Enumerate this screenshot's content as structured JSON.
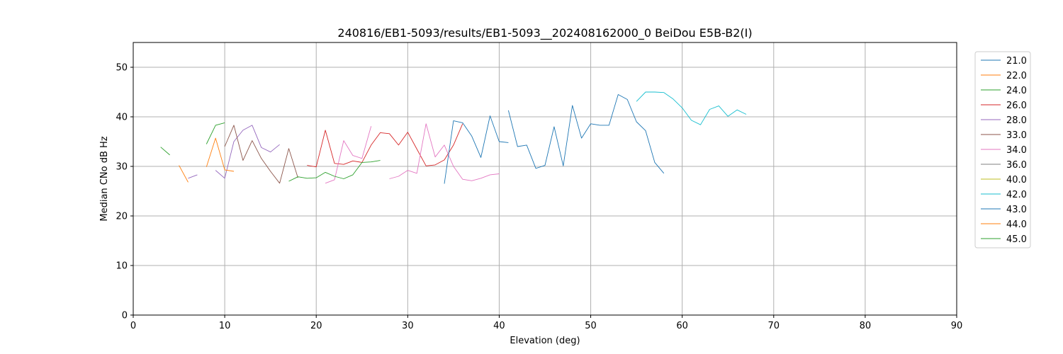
{
  "chart_data": {
    "type": "line",
    "title": "240816/EB1-5093/results/EB1-5093__202408162000_0 BeiDou E5B-B2(I)",
    "xlabel": "Elevation (deg)",
    "ylabel": "Median CNo dB Hz",
    "xlim": [
      0,
      90
    ],
    "ylim": [
      0,
      55
    ],
    "xticks": [
      0,
      10,
      20,
      30,
      40,
      50,
      60,
      70,
      80,
      90
    ],
    "yticks": [
      0,
      10,
      20,
      30,
      40,
      50
    ],
    "grid": true,
    "legend_position": "right-outside",
    "series": [
      {
        "name": "21.0",
        "color": "#1f77b4",
        "x": [
          41,
          42,
          43,
          44,
          45,
          46,
          47,
          48,
          49,
          50,
          51,
          52,
          53,
          54,
          55,
          56,
          57,
          58
        ],
        "y": [
          41.3,
          34.0,
          34.3,
          29.6,
          30.2,
          38.0,
          30.1,
          42.3,
          35.7,
          38.6,
          38.3,
          38.3,
          44.5,
          43.5,
          39.0,
          37.2,
          30.8,
          28.6
        ]
      },
      {
        "name": "22.0",
        "color": "#ff7f0e",
        "x": [
          5,
          6
        ],
        "y": [
          30.2,
          26.8
        ]
      },
      {
        "name": "24.0",
        "color": "#2ca02c",
        "x": [
          3,
          4
        ],
        "y": [
          33.9,
          32.3
        ]
      },
      {
        "name": "26.0",
        "color": "#d62728",
        "x": [
          19,
          20,
          21,
          22,
          23,
          24,
          25,
          26,
          27,
          28,
          29,
          30,
          31,
          32,
          33,
          34,
          35,
          36
        ],
        "y": [
          30.2,
          29.9,
          37.3,
          30.6,
          30.4,
          31.1,
          30.8,
          34.3,
          36.8,
          36.6,
          34.3,
          36.9,
          33.5,
          30.1,
          30.3,
          31.3,
          34.3,
          38.6
        ]
      },
      {
        "name": "28.0",
        "color": "#9467bd",
        "x": [
          6,
          7,
          8,
          9,
          10,
          11,
          12,
          13,
          14,
          15,
          16
        ],
        "y": [
          27.6,
          28.3,
          null,
          29.2,
          27.6,
          35.0,
          37.3,
          38.3,
          33.8,
          32.9,
          34.4
        ]
      },
      {
        "name": "33.0",
        "color": "#8c564b",
        "x": [
          10,
          11,
          12,
          13,
          14,
          15,
          16,
          17,
          18
        ],
        "y": [
          34.0,
          38.3,
          31.2,
          35.2,
          31.6,
          29.0,
          26.6,
          33.6,
          27.7
        ]
      },
      {
        "name": "34.0",
        "color": "#e377c2",
        "x": [
          21,
          22,
          23,
          24,
          25,
          26,
          null,
          28,
          29,
          30,
          31,
          32,
          33,
          34,
          35,
          36,
          37,
          38,
          39,
          40
        ],
        "y": [
          26.6,
          27.3,
          35.2,
          32.2,
          31.6,
          38.1,
          null,
          27.5,
          28.0,
          29.2,
          28.6,
          38.6,
          31.9,
          34.3,
          30.0,
          27.4,
          27.1,
          27.6,
          28.3,
          28.5
        ]
      },
      {
        "name": "36.0",
        "color": "#7f7f7f",
        "x": [],
        "y": []
      },
      {
        "name": "40.0",
        "color": "#bcbd22",
        "x": [],
        "y": []
      },
      {
        "name": "42.0",
        "color": "#17becf",
        "x": [
          55,
          56,
          57,
          58,
          59,
          60,
          61,
          62,
          63,
          64,
          65,
          66,
          67
        ],
        "y": [
          43.1,
          45.0,
          45.0,
          44.9,
          43.6,
          41.8,
          39.3,
          38.4,
          41.5,
          42.2,
          40.1,
          41.4,
          40.5
        ]
      },
      {
        "name": "43.0",
        "color": "#1f77b4",
        "x": [
          34,
          35,
          36,
          37,
          38,
          39,
          40,
          41
        ],
        "y": [
          26.5,
          39.2,
          38.8,
          36.1,
          31.8,
          40.2,
          35.0,
          34.8
        ]
      },
      {
        "name": "44.0",
        "color": "#ff7f0e",
        "x": [
          8,
          9,
          10,
          11
        ],
        "y": [
          29.9,
          35.7,
          29.3,
          29.0
        ]
      },
      {
        "name": "45.0",
        "color": "#2ca02c",
        "x": [
          8,
          9,
          10,
          null,
          17,
          18,
          19,
          20,
          21,
          22,
          23,
          24,
          25,
          26,
          27
        ],
        "y": [
          34.5,
          38.3,
          38.8,
          null,
          27.0,
          27.9,
          27.6,
          27.7,
          28.8,
          28.0,
          27.5,
          28.3,
          30.8,
          30.9,
          31.2
        ]
      }
    ]
  }
}
